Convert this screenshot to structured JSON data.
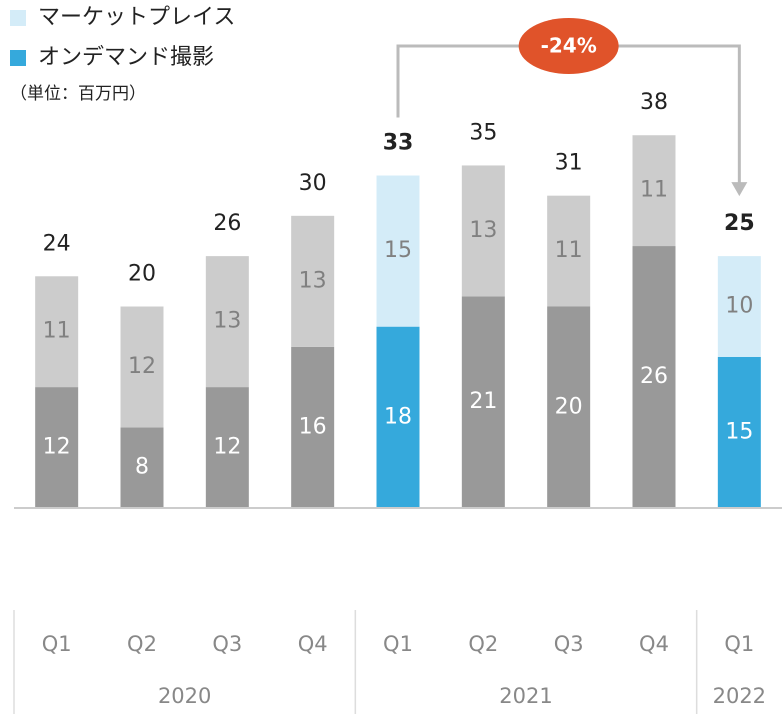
{
  "chart_data": {
    "type": "stacked_bar",
    "subtitle": "（単位：百万円）",
    "annotation": "-24%",
    "categories": [
      "Q1",
      "Q2",
      "Q3",
      "Q4",
      "Q1",
      "Q2",
      "Q3",
      "Q4",
      "Q1"
    ],
    "years": [
      "2020",
      null,
      null,
      null,
      "2021",
      null,
      null,
      null,
      "2022"
    ],
    "series": [
      {
        "name": "オンデマンド撮影",
        "color": "#35a9dc",
        "label_color": "#ffffff",
        "point_colors": [
          "#999999",
          "#999999",
          "#999999",
          "#999999",
          "#35a9dc",
          "#999999",
          "#999999",
          "#999999",
          "#35a9dc"
        ],
        "values": [
          12,
          8,
          12,
          16,
          18,
          21,
          20,
          26,
          15
        ]
      },
      {
        "name": "マーケットプレイス",
        "color": "#d4ecf8",
        "label_color": "#808080",
        "point_colors": [
          "#cccccc",
          "#cccccc",
          "#cccccc",
          "#cccccc",
          "#d4ecf8",
          "#cccccc",
          "#cccccc",
          "#cccccc",
          "#d4ecf8"
        ],
        "values": [
          11,
          12,
          13,
          13,
          15,
          13,
          11,
          11,
          10
        ]
      }
    ],
    "totals": [
      24,
      20,
      26,
      30,
      33,
      35,
      31,
      38,
      25
    ],
    "ylim": [
      0,
      40
    ]
  }
}
